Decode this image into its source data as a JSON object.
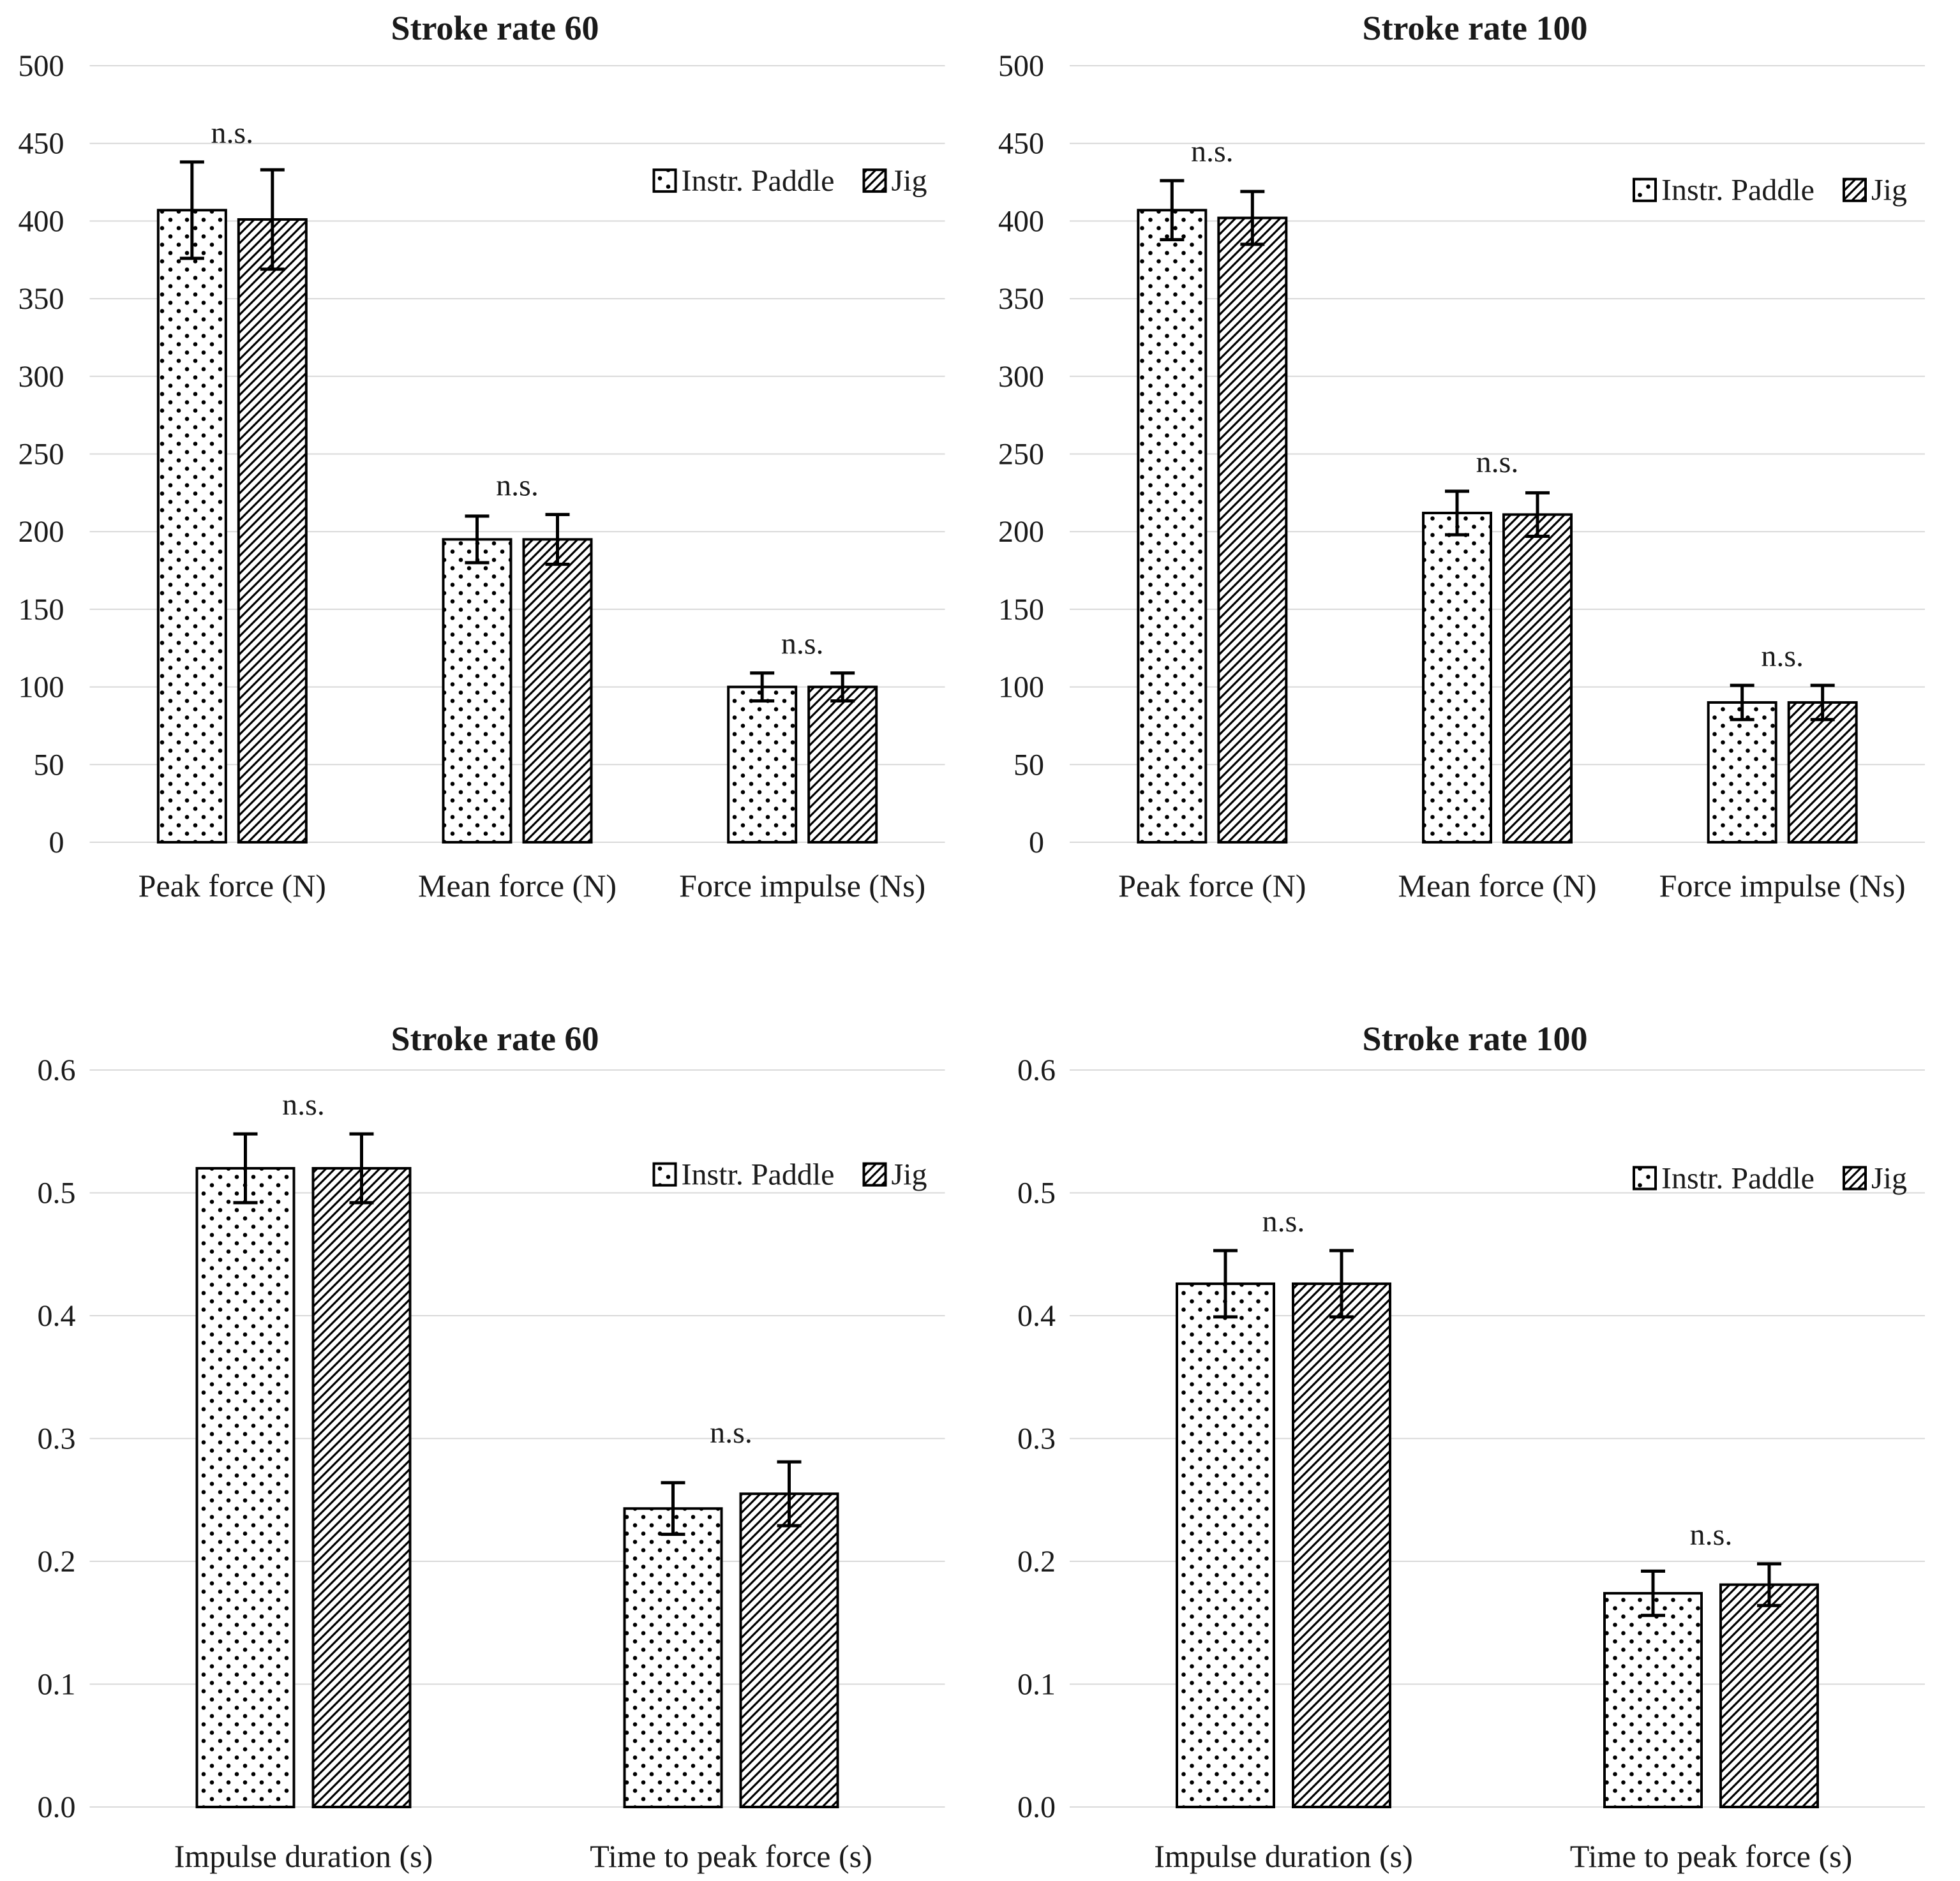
{
  "page": {
    "background": "#ffffff"
  },
  "colors": {
    "text": "#1a1a1a",
    "bar_outline": "#000000",
    "error_bar": "#000000",
    "gridline": "#d9d9d9",
    "bar_fill_background": "#ffffff"
  },
  "chart_data": [
    {
      "type": "bar",
      "title": "Stroke rate 60",
      "ylim": [
        0,
        500
      ],
      "ytick_labels": [
        "0",
        "50",
        "100",
        "150",
        "200",
        "250",
        "300",
        "350",
        "400",
        "450",
        "500"
      ],
      "categories": [
        "Peak force (N)",
        "Mean force (N)",
        "Force impulse (Ns)"
      ],
      "series": [
        {
          "name": "Instr. Paddle",
          "pattern": "dots",
          "values": [
            407,
            195,
            100
          ],
          "errors": [
            31,
            15,
            9
          ]
        },
        {
          "name": "Jig",
          "pattern": "hatch",
          "values": [
            401,
            195,
            100
          ],
          "errors": [
            32,
            16,
            9
          ]
        }
      ],
      "annotations": [
        "n.s.",
        "n.s.",
        "n.s."
      ],
      "legend_labels": [
        "Instr. Paddle",
        "Jig"
      ],
      "legend_position": "upper-right",
      "legend_y_value": 426,
      "grid": true
    },
    {
      "type": "bar",
      "title": "Stroke rate 100",
      "ylim": [
        0,
        500
      ],
      "ytick_labels": [
        "0",
        "50",
        "100",
        "150",
        "200",
        "250",
        "300",
        "350",
        "400",
        "450",
        "500"
      ],
      "categories": [
        "Peak force (N)",
        "Mean force (N)",
        "Force impulse (Ns)"
      ],
      "series": [
        {
          "name": "Instr. Paddle",
          "pattern": "dots",
          "values": [
            407,
            212,
            90
          ],
          "errors": [
            19,
            14,
            11
          ]
        },
        {
          "name": "Jig",
          "pattern": "hatch",
          "values": [
            402,
            211,
            90
          ],
          "errors": [
            17,
            14,
            11
          ]
        }
      ],
      "annotations": [
        "n.s.",
        "n.s.",
        "n.s."
      ],
      "legend_labels": [
        "Instr. Paddle",
        "Jig"
      ],
      "legend_position": "upper-right",
      "legend_y_value": 420,
      "grid": true
    },
    {
      "type": "bar",
      "title": "Stroke rate 60",
      "ylim": [
        0,
        0.6
      ],
      "ytick_labels": [
        "0.0",
        "0.1",
        "0.2",
        "0.3",
        "0.4",
        "0.5",
        "0.6"
      ],
      "categories": [
        "Impulse duration (s)",
        "Time to peak force (s)"
      ],
      "series": [
        {
          "name": "Instr. Paddle",
          "pattern": "dots",
          "values": [
            0.52,
            0.243
          ],
          "errors": [
            0.028,
            0.021
          ]
        },
        {
          "name": "Jig",
          "pattern": "hatch",
          "values": [
            0.52,
            0.255
          ],
          "errors": [
            0.028,
            0.026
          ]
        }
      ],
      "annotations": [
        "n.s.",
        "n.s."
      ],
      "legend_labels": [
        "Instr. Paddle",
        "Jig"
      ],
      "legend_position": "upper-right",
      "legend_y_value": 0.515,
      "grid": true
    },
    {
      "type": "bar",
      "title": "Stroke rate 100",
      "ylim": [
        0,
        0.6
      ],
      "ytick_labels": [
        "0.0",
        "0.1",
        "0.2",
        "0.3",
        "0.4",
        "0.5",
        "0.6"
      ],
      "categories": [
        "Impulse duration (s)",
        "Time to peak force (s)"
      ],
      "series": [
        {
          "name": "Instr. Paddle",
          "pattern": "dots",
          "values": [
            0.426,
            0.174
          ],
          "errors": [
            0.027,
            0.018
          ]
        },
        {
          "name": "Jig",
          "pattern": "hatch",
          "values": [
            0.426,
            0.181
          ],
          "errors": [
            0.027,
            0.017
          ]
        }
      ],
      "annotations": [
        "n.s.",
        "n.s."
      ],
      "legend_labels": [
        "Instr. Paddle",
        "Jig"
      ],
      "legend_position": "upper-right",
      "legend_y_value": 0.512,
      "grid": true
    }
  ]
}
